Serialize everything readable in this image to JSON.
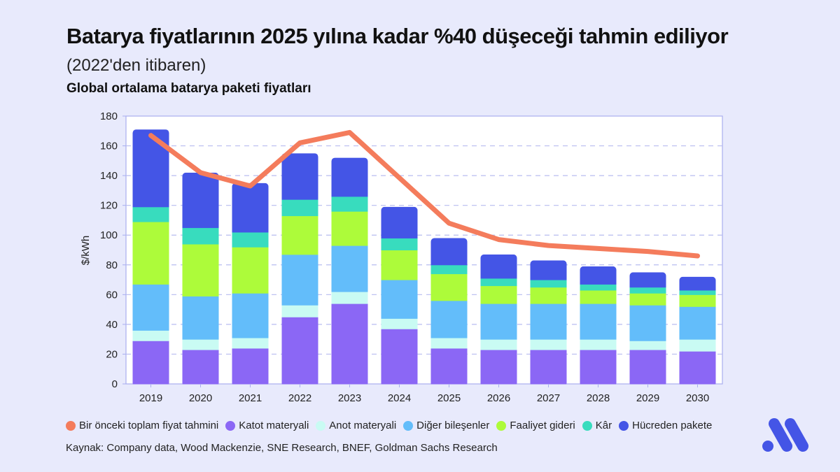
{
  "header": {
    "title": "Batarya fiyatlarının 2025 yılına kadar %40 düşeceği tahmin ediliyor",
    "subtitle": "(2022'den itibaren)",
    "chart_caption": "Global ortalama batarya paketi fiyatları"
  },
  "legend": [
    {
      "label": "Bir önceki toplam fiyat tahmini",
      "color": "#f47c5c"
    },
    {
      "label": "Katot materyali",
      "color": "#8b67f5"
    },
    {
      "label": "Anot materyali",
      "color": "#c9fbf3"
    },
    {
      "label": "Diğer bileşenler",
      "color": "#63bdfa"
    },
    {
      "label": "Faaliyet gideri",
      "color": "#adfb3a"
    },
    {
      "label": "Kâr",
      "color": "#38dcbe"
    },
    {
      "label": "Hücreden pakete",
      "color": "#4455e6"
    }
  ],
  "source": "Kaynak: Company  data, Wood Mackenzie, SNE Research, BNEF, Goldman Sachs Research",
  "chart_data": {
    "type": "bar",
    "stacked": true,
    "title": "Global ortalama batarya paketi fiyatları",
    "xlabel": "",
    "ylabel": "$/kWh",
    "ylim": [
      0,
      180
    ],
    "yticks": [
      0,
      20,
      40,
      60,
      80,
      100,
      120,
      140,
      160,
      180
    ],
    "grid": "horizontal dashed",
    "legend_position": "bottom",
    "categories": [
      "2019",
      "2020",
      "2021",
      "2022",
      "2023",
      "2024",
      "2025",
      "2026",
      "2027",
      "2028",
      "2029",
      "2030"
    ],
    "series": [
      {
        "name": "Katot materyali",
        "color": "#8b67f5",
        "values": [
          29,
          23,
          24,
          45,
          54,
          37,
          24,
          23,
          23,
          23,
          23,
          22
        ]
      },
      {
        "name": "Anot materyali",
        "color": "#c9fbf3",
        "values": [
          7,
          7,
          7,
          8,
          8,
          7,
          7,
          7,
          7,
          7,
          6,
          8
        ]
      },
      {
        "name": "Diğer bileşenler",
        "color": "#63bdfa",
        "values": [
          31,
          29,
          30,
          34,
          31,
          26,
          25,
          24,
          24,
          24,
          24,
          22
        ]
      },
      {
        "name": "Faaliyet gideri",
        "color": "#adfb3a",
        "values": [
          42,
          35,
          31,
          26,
          23,
          20,
          18,
          12,
          11,
          9,
          8,
          8
        ]
      },
      {
        "name": "Kâr",
        "color": "#38dcbe",
        "values": [
          10,
          11,
          10,
          11,
          10,
          8,
          6,
          5,
          5,
          4,
          4,
          3
        ]
      },
      {
        "name": "Hücreden pakete",
        "color": "#4455e6",
        "values": [
          52,
          37,
          33,
          31,
          26,
          21,
          18,
          16,
          13,
          12,
          10,
          9
        ]
      }
    ],
    "totals": [
      171,
      142,
      135,
      155,
      152,
      119,
      98,
      87,
      83,
      79,
      75,
      72
    ],
    "line_series": {
      "name": "Bir önceki toplam fiyat tahmini",
      "color": "#f47c5c",
      "x": [
        "2019",
        "2020",
        "2021",
        "2022",
        "2023",
        "2025",
        "2026",
        "2027",
        "2028",
        "2029",
        "2030"
      ],
      "values": [
        167,
        142,
        133,
        162,
        169,
        108,
        97,
        93,
        91,
        89,
        86
      ]
    }
  }
}
